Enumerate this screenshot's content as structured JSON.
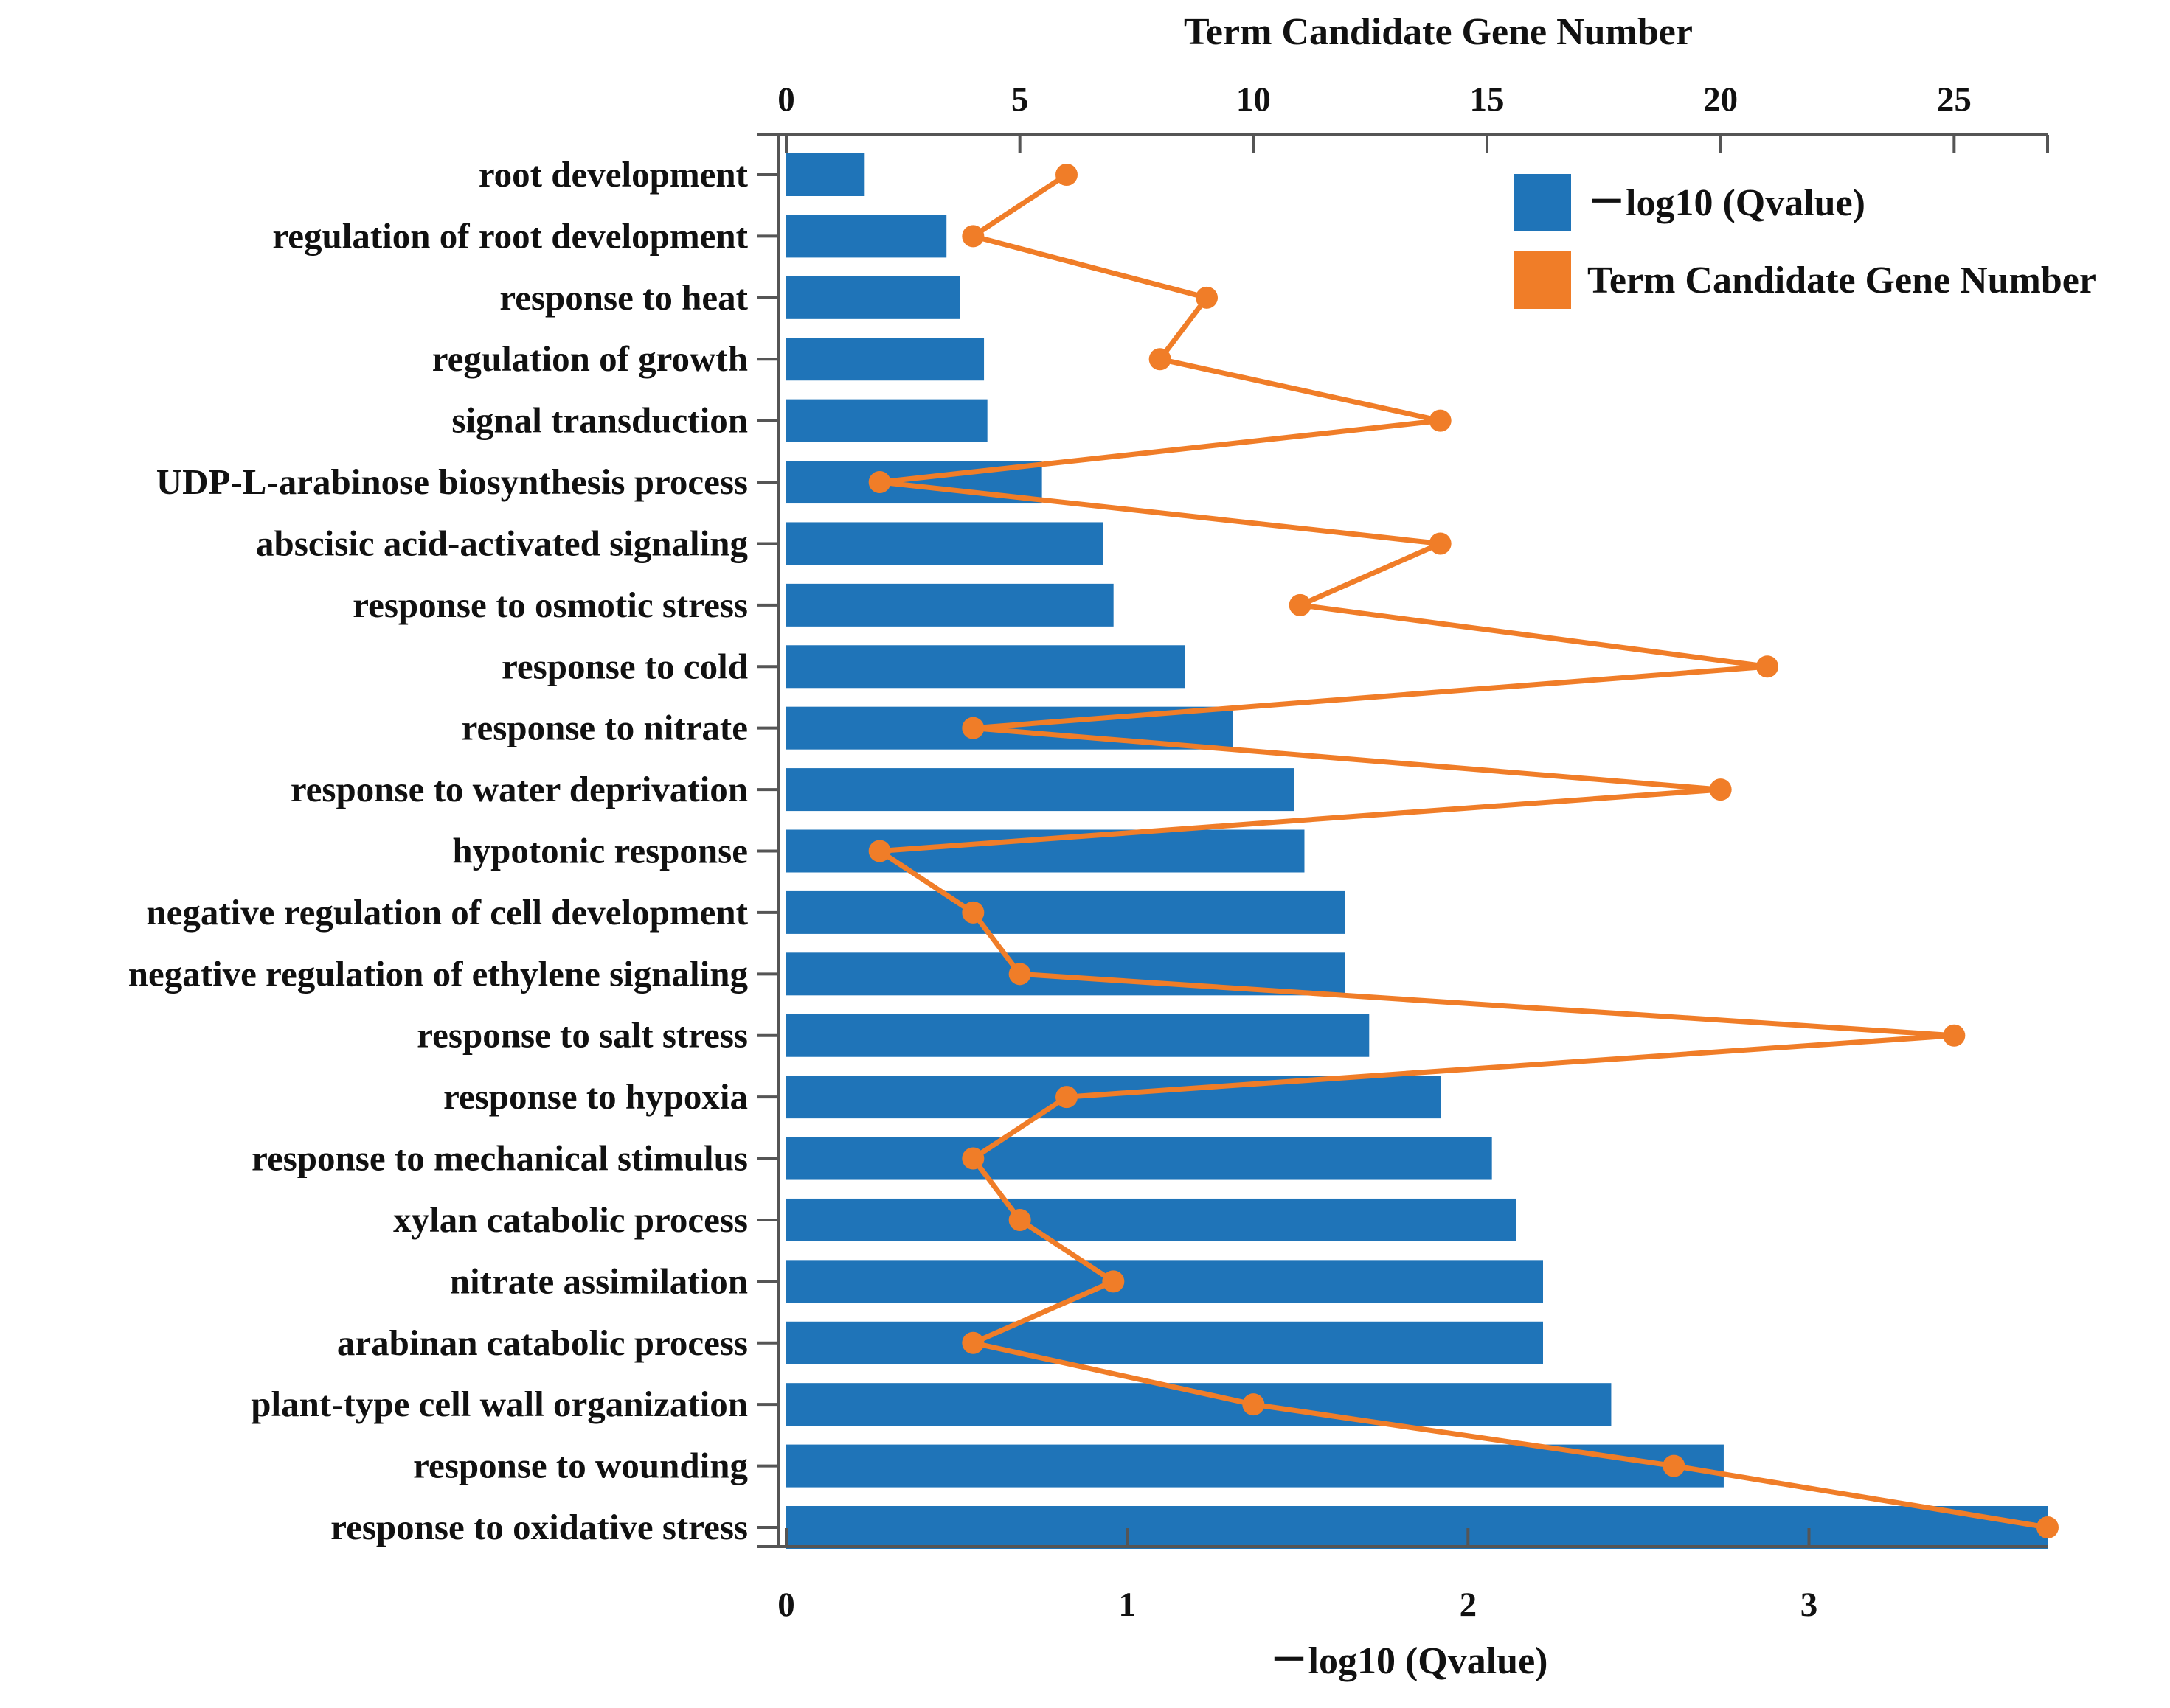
{
  "chart_data": {
    "type": "bar",
    "orientation": "horizontal",
    "categories": [
      "root development",
      "regulation of  root development",
      "response to heat",
      "regulation of growth",
      "signal transduction",
      "UDP-L-arabinose biosynthesis process",
      "abscisic acid-activated signaling",
      "response to osmotic stress",
      "response to cold",
      "response to nitrate",
      "response to water deprivation",
      "hypotonic response",
      "negative regulation of cell development",
      "negative regulation of ethylene signaling",
      "response to salt stress",
      "response to hypoxia",
      "response to mechanical stimulus",
      "xylan catabolic process",
      "nitrate assimilation",
      "arabinan catabolic process",
      "plant-type cell wall organization",
      "response to wounding",
      "response to oxidative stress"
    ],
    "series": [
      {
        "name": "－log10 (Qvalue)",
        "kind": "bar",
        "axis": "bottom",
        "color": "#1f74b8",
        "values": [
          0.23,
          0.47,
          0.51,
          0.58,
          0.59,
          0.75,
          0.93,
          0.96,
          1.17,
          1.31,
          1.49,
          1.52,
          1.64,
          1.64,
          1.71,
          1.92,
          2.07,
          2.14,
          2.22,
          2.22,
          2.42,
          2.75,
          3.7
        ]
      },
      {
        "name": "Term Candidate Gene Number",
        "kind": "line",
        "axis": "top",
        "color": "#f07d28",
        "values": [
          6,
          4,
          9,
          8,
          14,
          2,
          14,
          11,
          21,
          4,
          20,
          2,
          4,
          5,
          25,
          6,
          4,
          5,
          7,
          4,
          10,
          19,
          27
        ]
      }
    ],
    "top_axis": {
      "title": "Term Candidate Gene Number",
      "range": [
        0,
        27
      ],
      "ticks": [
        0,
        5,
        10,
        15,
        20,
        25
      ]
    },
    "bottom_axis": {
      "title": "－log10 (Qvalue)",
      "range": [
        0,
        3.7
      ],
      "ticks": [
        0,
        1,
        2,
        3
      ]
    },
    "legend": {
      "position": "top-right",
      "entries": [
        "－log10 (Qvalue)",
        "Term Candidate Gene Number"
      ]
    },
    "grid": false
  }
}
